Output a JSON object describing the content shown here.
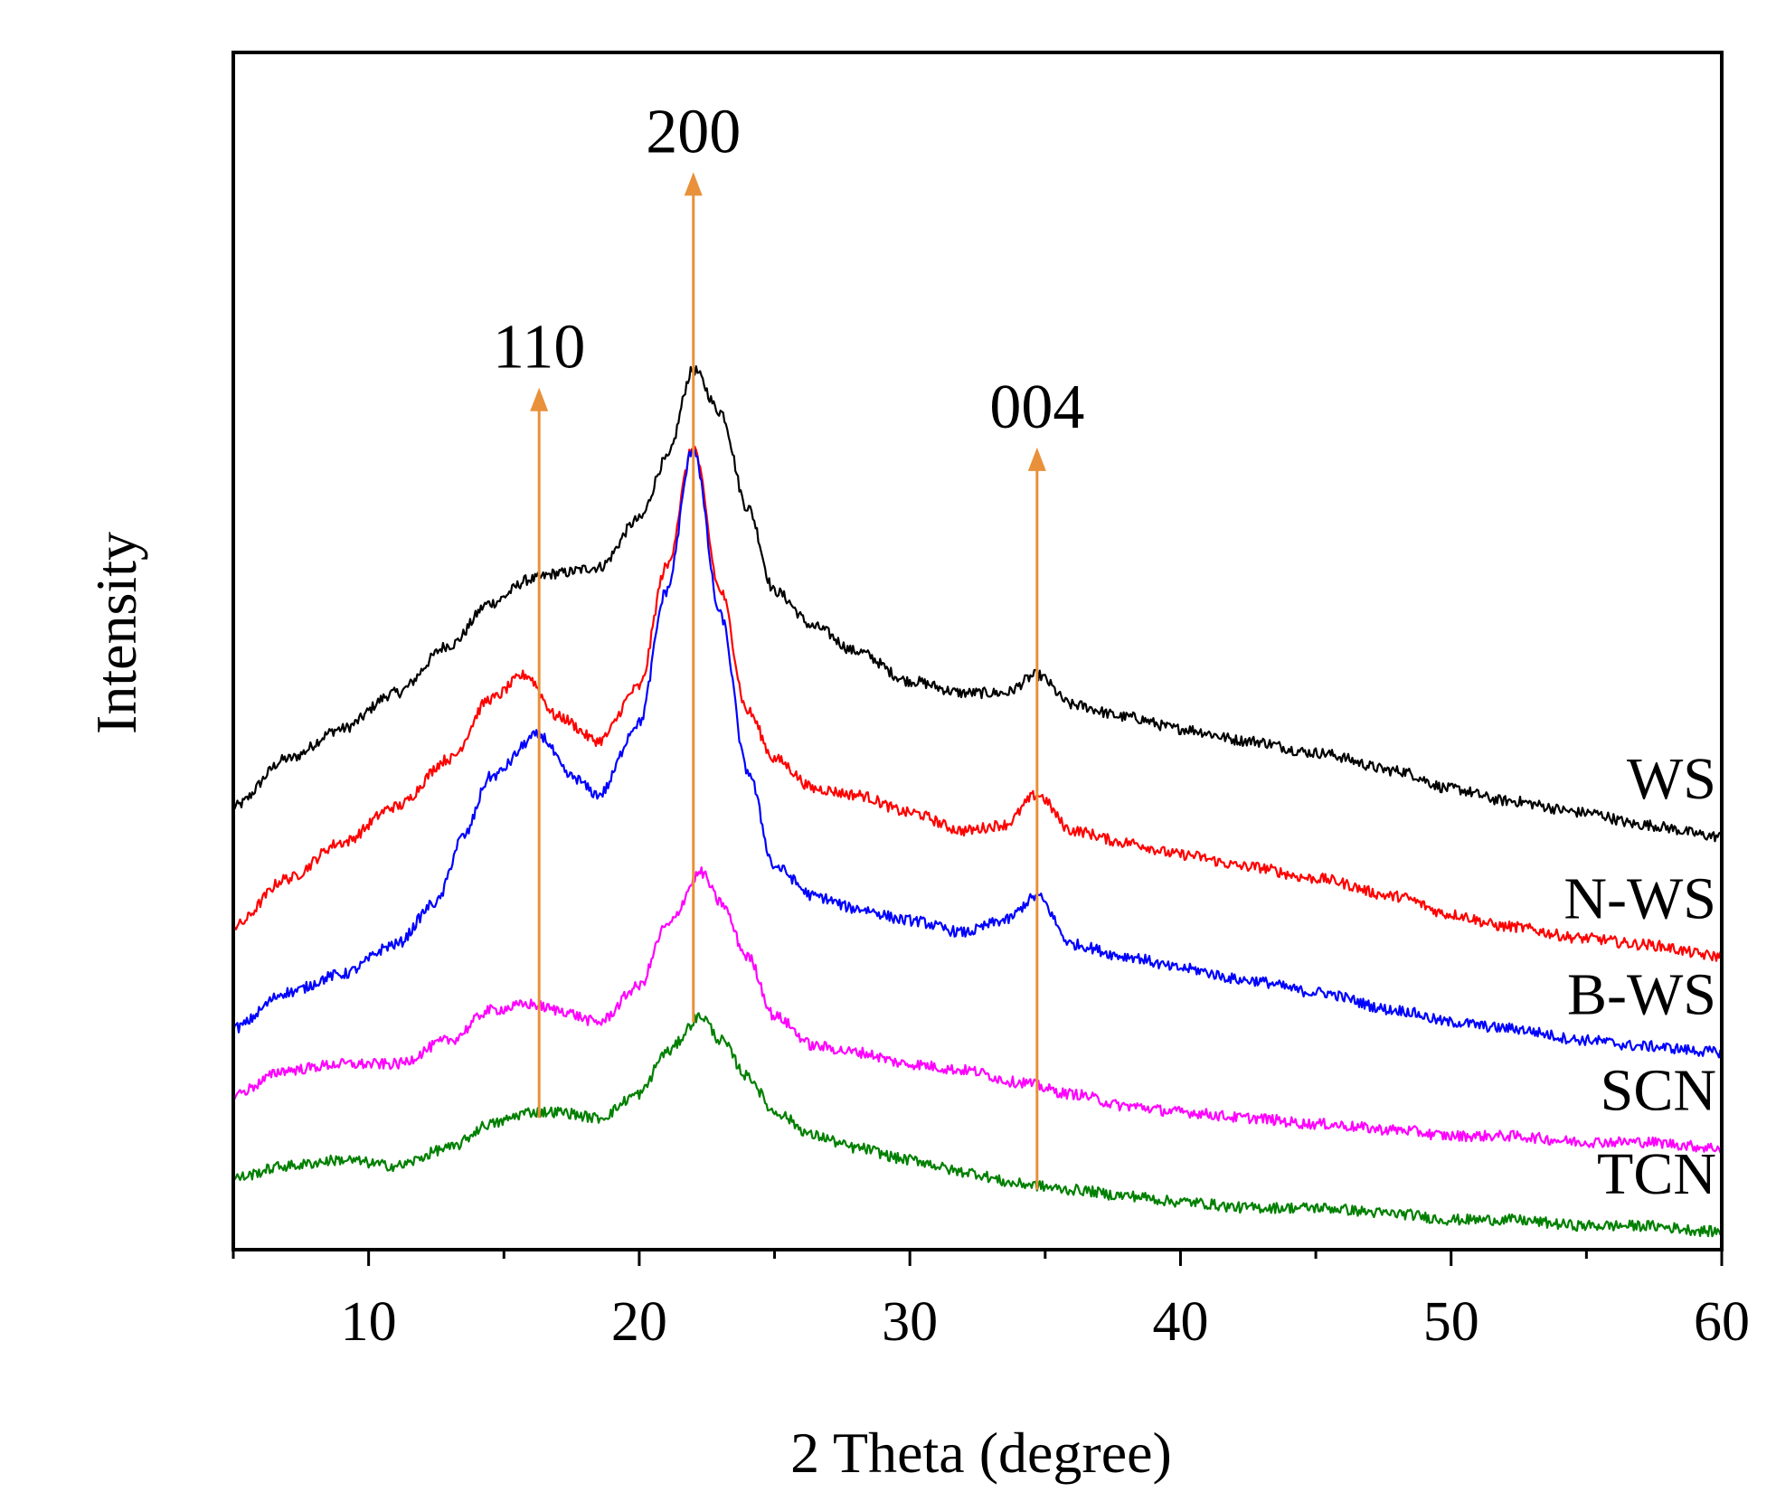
{
  "chart_data": {
    "type": "line",
    "title": "",
    "xlabel": "2 Theta (degree)",
    "ylabel": "Intensity",
    "xlim": [
      5,
      60
    ],
    "ylim": [
      0,
      100
    ],
    "x_ticks": [
      10,
      20,
      30,
      40,
      50,
      60
    ],
    "x_tick_labels": [
      "10",
      "20",
      "30",
      "40",
      "50",
      "60"
    ],
    "y_ticks_shown": false,
    "grid": false,
    "legend": "inline-right",
    "peak_annotations": [
      {
        "label": "110",
        "x": 16.3,
        "arrow_from": 11,
        "arrow_to": 72
      },
      {
        "label": "200",
        "x": 22.0,
        "arrow_from": 19,
        "arrow_to": 90
      },
      {
        "label": "004",
        "x": 34.7,
        "arrow_from": 5,
        "arrow_to": 67
      }
    ],
    "series": [
      {
        "name": "WS",
        "color": "#000000",
        "x": [
          5,
          7,
          9,
          11,
          13,
          14.5,
          16,
          17,
          18.5,
          20,
          21,
          22,
          23,
          24,
          25,
          26.5,
          28,
          30,
          32,
          33.5,
          34.7,
          36,
          38,
          40,
          42.5,
          45,
          48,
          50,
          52,
          55,
          57,
          60
        ],
        "y": [
          37,
          41,
          43.5,
          46.5,
          50.5,
          54,
          56,
          56.5,
          57,
          61,
          66,
          73.5,
          70,
          62,
          55,
          52,
          50,
          47.5,
          46.5,
          46.5,
          48,
          45.5,
          44.5,
          43.5,
          42.5,
          41.5,
          40,
          38.5,
          37.5,
          36.5,
          35.5,
          34.5
        ]
      },
      {
        "name": "N-WS",
        "color": "#ff0000",
        "x": [
          5,
          7,
          9,
          11,
          13,
          14.5,
          15.8,
          17,
          18.5,
          20,
          21,
          22,
          23,
          24,
          25,
          26.5,
          28,
          30,
          32,
          33.5,
          34.7,
          36,
          38,
          40,
          42.5,
          45,
          48,
          50,
          52,
          55,
          57,
          60
        ],
        "y": [
          27,
          31,
          34,
          37,
          41,
          46,
          48,
          44.5,
          42.5,
          47,
          57,
          67,
          55,
          45,
          41,
          38.5,
          38,
          36.5,
          35,
          35.5,
          38,
          35,
          34,
          33,
          32,
          31,
          29.5,
          28,
          27,
          26,
          25.5,
          24.5
        ]
      },
      {
        "name": "B-WS",
        "color": "#0000ff",
        "x": [
          5,
          7,
          9,
          11,
          12.5,
          13.5,
          14.5,
          16.3,
          17.5,
          18.5,
          20,
          21,
          22,
          23,
          24,
          25,
          26.5,
          28,
          30,
          32,
          33.5,
          34.7,
          36,
          38,
          40,
          42.5,
          45,
          48,
          50,
          52,
          55,
          57,
          60
        ],
        "y": [
          18.5,
          21.5,
          23,
          25.5,
          29,
          34.5,
          39.5,
          43,
          39.5,
          38,
          44,
          55,
          67,
          53,
          40,
          32,
          29.5,
          28.5,
          27.5,
          26.5,
          27.5,
          29.5,
          25.5,
          24.5,
          23.5,
          22.5,
          21.5,
          20,
          19,
          18.5,
          17.5,
          17,
          16.5
        ]
      },
      {
        "name": "SCN",
        "color": "#ff00ff",
        "x": [
          5,
          7,
          9,
          11,
          13,
          14.5,
          16,
          17,
          18.5,
          20,
          21,
          22.3,
          23,
          24,
          25,
          26.5,
          28,
          30,
          32,
          34,
          36,
          38,
          40,
          42.5,
          45,
          48,
          50,
          52,
          55,
          57,
          60
        ],
        "y": [
          13,
          15,
          15.5,
          15.5,
          17.5,
          20,
          20.5,
          20,
          19,
          22,
          27,
          31.5,
          29,
          24.5,
          19.5,
          17,
          16.5,
          15.5,
          15,
          14,
          13,
          12,
          11.5,
          11,
          10.5,
          10,
          9.5,
          9.5,
          9,
          9,
          8.5
        ]
      },
      {
        "name": "TCN",
        "color": "#008000",
        "x": [
          5,
          7,
          9,
          11,
          13,
          14.5,
          16,
          17,
          18.5,
          20,
          21,
          22.3,
          23,
          24,
          25,
          26.5,
          28,
          30,
          32,
          34,
          36,
          38,
          40,
          42.5,
          45,
          48,
          50,
          52,
          55,
          57,
          60
        ],
        "y": [
          6,
          7,
          7.5,
          7,
          8.5,
          10.5,
          11.5,
          11.5,
          11,
          13,
          16.5,
          19.5,
          17.5,
          14.5,
          11.5,
          9.5,
          8.5,
          7.5,
          6.5,
          5.5,
          5,
          4.5,
          4,
          3.5,
          3.5,
          3,
          2.5,
          2.5,
          2,
          2,
          1.5
        ]
      }
    ]
  }
}
